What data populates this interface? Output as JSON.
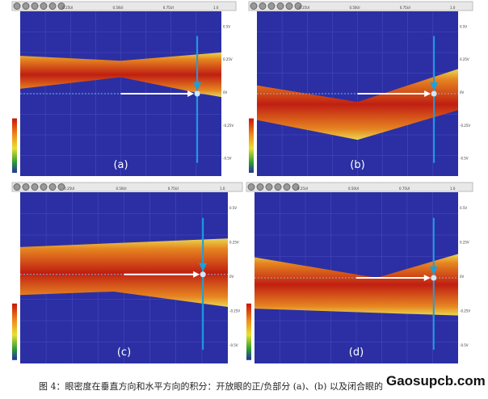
{
  "figure": {
    "panels": [
      {
        "label": "(a)"
      },
      {
        "label": "(b)"
      },
      {
        "label": "(c)"
      },
      {
        "label": "(d)"
      }
    ],
    "top_axis": [
      "0.25UI",
      "0.50UI",
      "0.75UI",
      "1.0"
    ],
    "right_axis": [
      "0.5V",
      "0.25V",
      "0V",
      "-0.25V",
      "-0.5V"
    ],
    "caption": "图 4：眼密度在垂直方向和水平方向的积分：开放眼的正/负部分 (a)、(b) 以及闭合眼的",
    "watermark": "Gaosupcb.com"
  }
}
